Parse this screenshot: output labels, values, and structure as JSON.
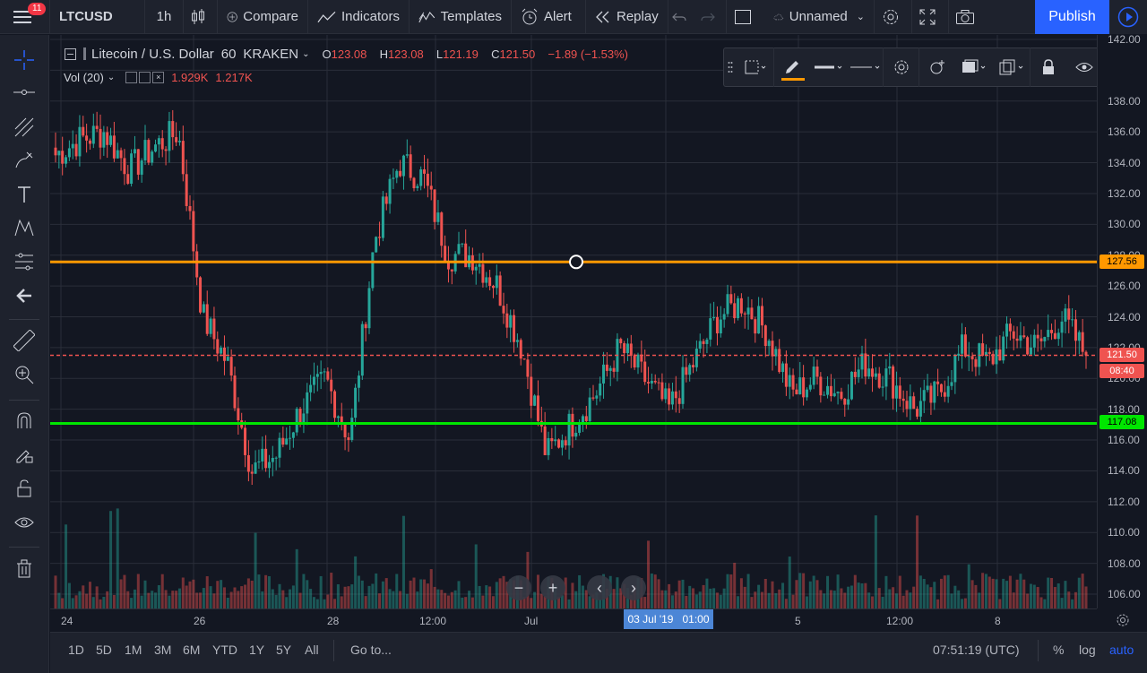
{
  "topbar": {
    "notification_count": "11",
    "symbol": "LTCUSD",
    "interval": "1h",
    "compare": "Compare",
    "indicators": "Indicators",
    "templates": "Templates",
    "alert": "Alert",
    "replay": "Replay",
    "layout_name": "Unnamed",
    "publish": "Publish"
  },
  "legend": {
    "title": "Litecoin / U.S. Dollar",
    "interval": "60",
    "exchange": "KRAKEN",
    "o_label": "O",
    "o_value": "123.08",
    "h_label": "H",
    "h_value": "123.08",
    "l_label": "L",
    "l_value": "121.19",
    "c_label": "C",
    "c_value": "121.50",
    "change": "−1.89 (−1.53%)",
    "vol_label": "Vol (20)",
    "vol_value1": "1.929K",
    "vol_value2": "1.217K"
  },
  "price_axis": {
    "ticks": [
      "142.00",
      "138.00",
      "136.00",
      "134.00",
      "132.00",
      "130.00",
      "128.00",
      "126.00",
      "124.00",
      "122.00",
      "120.00",
      "118.00",
      "116.00",
      "114.00",
      "112.00",
      "110.00",
      "108.00",
      "106.00"
    ],
    "orange_line": "127.56",
    "current_price": "121.50",
    "countdown": "08:40",
    "green_line": "117.08"
  },
  "time_axis": {
    "ticks": [
      "24",
      "26",
      "28",
      "12:00",
      "Jul",
      "5",
      "12:00",
      "8"
    ],
    "crosshair_label": "03 Jul '19   01:00"
  },
  "bottombar": {
    "ranges": [
      "1D",
      "5D",
      "1M",
      "3M",
      "6M",
      "YTD",
      "1Y",
      "5Y",
      "All"
    ],
    "goto": "Go to...",
    "clock": "07:51:19 (UTC)",
    "percent": "%",
    "log": "log",
    "auto": "auto"
  },
  "colors": {
    "up": "#26a69a",
    "down": "#ef5350",
    "orange_line": "#ff9800",
    "green_line": "#00e600",
    "accent": "#2962ff"
  },
  "chart_data": {
    "type": "candlestick",
    "symbol": "LTCUSD",
    "x": [
      "24",
      "26",
      "28",
      "12:00",
      "Jul",
      "03 Jul '19 01:00",
      "5",
      "12:00",
      "8"
    ],
    "approx_close_path": [
      134.5,
      135.5,
      136,
      133.5,
      135,
      136,
      124,
      121,
      114,
      115,
      118,
      120,
      116,
      129,
      134,
      133,
      128,
      128,
      126,
      122,
      115,
      117,
      119,
      122,
      120,
      118,
      121,
      124,
      125,
      123,
      119,
      120,
      119,
      121,
      120,
      118,
      119,
      122,
      121,
      123,
      122,
      124,
      121.5
    ],
    "horizontal_levels": [
      127.56,
      117.08
    ],
    "current_price": 121.5,
    "ylim": [
      104.5,
      142.5
    ],
    "volume_indicator": "Vol (20)"
  }
}
